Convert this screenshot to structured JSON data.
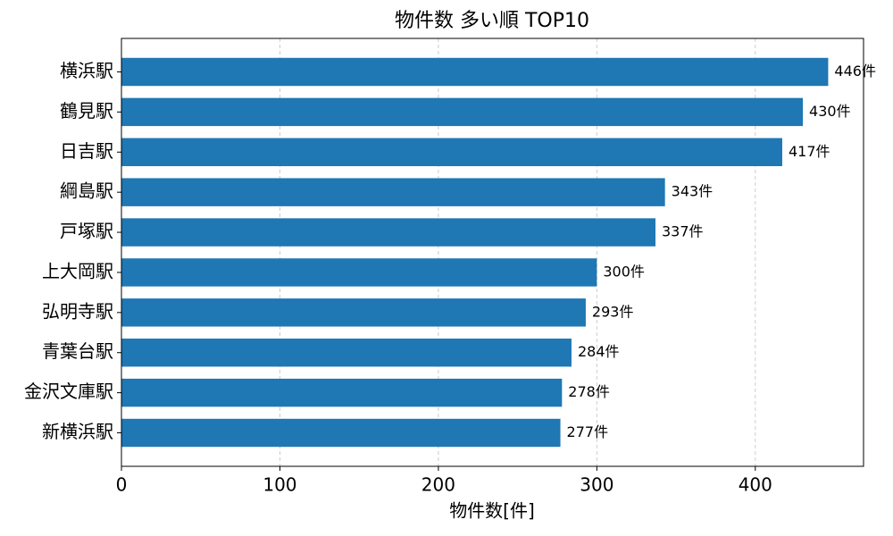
{
  "chart_data": {
    "type": "barh",
    "title": "物件数 多い順 TOP10",
    "xlabel": "物件数[件]",
    "categories": [
      "横浜駅",
      "鶴見駅",
      "日吉駅",
      "綱島駅",
      "戸塚駅",
      "上大岡駅",
      "弘明寺駅",
      "青葉台駅",
      "金沢文庫駅",
      "新横浜駅"
    ],
    "values": [
      446,
      430,
      417,
      343,
      337,
      300,
      293,
      284,
      278,
      277
    ],
    "value_labels": [
      "446件",
      "430件",
      "417件",
      "343件",
      "337件",
      "300件",
      "293件",
      "284件",
      "278件",
      "277件"
    ],
    "color": "#1f77b4",
    "xlim": [
      0,
      468.3
    ],
    "xticks": [
      0,
      100,
      200,
      300,
      400
    ],
    "grid": true
  }
}
